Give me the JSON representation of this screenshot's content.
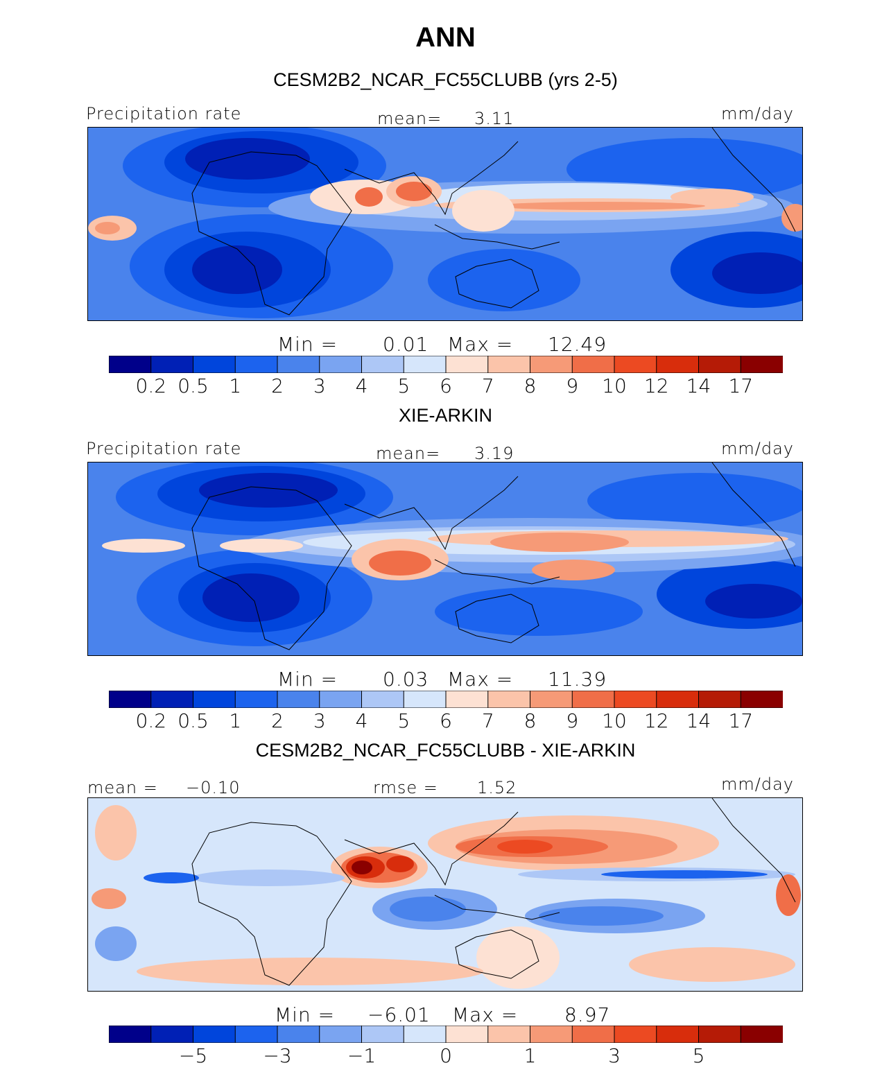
{
  "figure": {
    "title": "ANN"
  },
  "palettes": {
    "abs": [
      "#00008a",
      "#0020b5",
      "#0045dc",
      "#1c63ee",
      "#4a83ec",
      "#7aa4f1",
      "#adc7f6",
      "#d6e6fb",
      "#fde1d3",
      "#fbc4aa",
      "#f69a77",
      "#f06e48",
      "#ec4a22",
      "#d82d0c",
      "#b51b06",
      "#8a0000"
    ],
    "diff": [
      "#00008a",
      "#0020b5",
      "#0045dc",
      "#1c63ee",
      "#4a83ec",
      "#7aa4f1",
      "#adc7f6",
      "#d6e6fb",
      "#fde1d3",
      "#fbc4aa",
      "#f69a77",
      "#f06e48",
      "#ec4a22",
      "#d82d0c",
      "#b51b06",
      "#8a0000"
    ]
  },
  "panels": [
    {
      "title": "CESM2B2_NCAR_FC55CLUBB (yrs 2-5)",
      "variable": "Precipitation rate",
      "mean_label": "mean=",
      "mean_value": "3.11",
      "units": "mm/day",
      "min_label": "Min =",
      "min_value": "0.01",
      "max_label": "Max =",
      "max_value": "12.49",
      "colorbar_ticks": [
        "0.2",
        "0.5",
        "1",
        "2",
        "3",
        "4",
        "5",
        "6",
        "7",
        "8",
        "9",
        "10",
        "12",
        "14",
        "17"
      ],
      "palette": "abs"
    },
    {
      "title": "XIE-ARKIN",
      "variable": "Precipitation rate",
      "mean_label": "mean=",
      "mean_value": "3.19",
      "units": "mm/day",
      "min_label": "Min =",
      "min_value": "0.03",
      "max_label": "Max =",
      "max_value": "11.39",
      "colorbar_ticks": [
        "0.2",
        "0.5",
        "1",
        "2",
        "3",
        "4",
        "5",
        "6",
        "7",
        "8",
        "9",
        "10",
        "12",
        "14",
        "17"
      ],
      "palette": "abs"
    },
    {
      "title": "CESM2B2_NCAR_FC55CLUBB - XIE-ARKIN",
      "mean_label": "mean =",
      "mean_value": "−0.10",
      "rmse_label": "rmse =",
      "rmse_value": "1.52",
      "units": "mm/day",
      "min_label": "Min =",
      "min_value": "−6.01",
      "max_label": "Max =",
      "max_value": "8.97",
      "colorbar_ticks": [
        "−5",
        "−3",
        "−1",
        "0",
        "1",
        "3",
        "5"
      ],
      "palette": "diff"
    }
  ]
}
